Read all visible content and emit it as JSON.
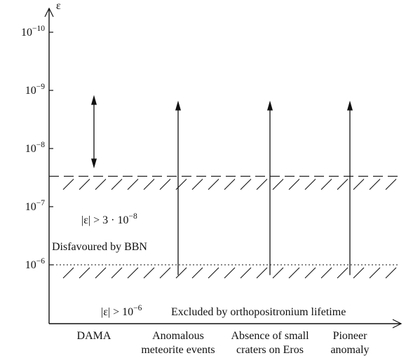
{
  "chart_data": {
    "type": "scatter",
    "title": "",
    "ylabel": "ε",
    "xlabel": "",
    "y_scale": "log",
    "y_tick_labels": [
      {
        "base": "10",
        "exp": "−10",
        "value": 1e-10
      },
      {
        "base": "10",
        "exp": "−9",
        "value": 1e-09
      },
      {
        "base": "10",
        "exp": "−8",
        "value": 1e-08
      },
      {
        "base": "10",
        "exp": "−7",
        "value": 1e-07
      },
      {
        "base": "10",
        "exp": "−6",
        "value": 1e-06
      }
    ],
    "categories": [
      {
        "lines": [
          "DAMA"
        ]
      },
      {
        "lines": [
          "Anomalous",
          "meteorite events"
        ]
      },
      {
        "lines": [
          "Absence of small",
          "craters on Eros"
        ]
      },
      {
        "lines": [
          "Pioneer",
          "anomaly"
        ]
      }
    ],
    "ranges": [
      {
        "category": 0,
        "from": 1.2e-09,
        "to": 2.2e-08,
        "ends": "both"
      },
      {
        "category": 1,
        "from": 1.5e-06,
        "to": 1.5e-09,
        "ends": "up"
      },
      {
        "category": 2,
        "from": 1.5e-06,
        "to": 1.5e-09,
        "ends": "up"
      },
      {
        "category": 3,
        "from": 1.5e-06,
        "to": 1.5e-09,
        "ends": "up"
      }
    ],
    "bounds": [
      {
        "value": 3e-08,
        "line_style": "dashed",
        "labels": [
          "|ε| > 3 · 10",
          "Disfavoured by BBN"
        ],
        "label_exp": "−8"
      },
      {
        "value": 1e-06,
        "line_style": "dotted",
        "labels": [
          "|ε| > 10",
          "Excluded by orthopositronium lifetime"
        ],
        "label_exp": "−6"
      }
    ],
    "grid": false,
    "colors": {
      "ink": "#111111",
      "background": "#ffffff"
    }
  }
}
